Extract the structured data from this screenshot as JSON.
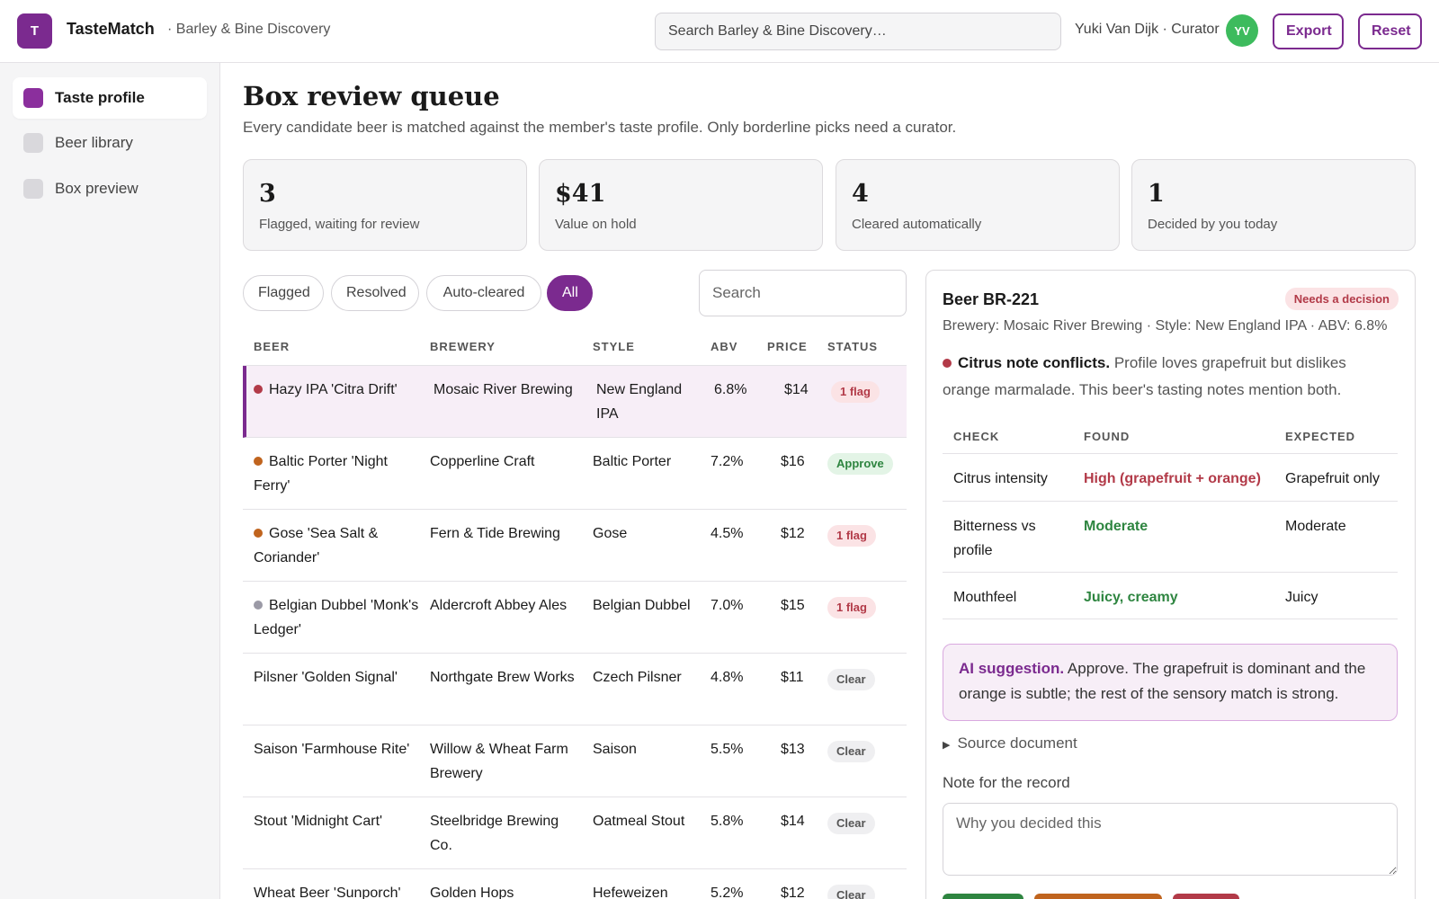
{
  "header": {
    "logo_letter": "T",
    "app_name": "TasteMatch",
    "workspace": "· Barley & Bine Discovery",
    "search_placeholder": "Search Barley & Bine Discovery…",
    "user": "Yuki Van Dijk · Curator",
    "avatar_initials": "YV",
    "export_label": "Export",
    "reset_label": "Reset"
  },
  "sidebar": {
    "items": [
      {
        "label": "Taste profile",
        "active": true
      },
      {
        "label": "Beer library",
        "active": false
      },
      {
        "label": "Box preview",
        "active": false
      }
    ]
  },
  "main": {
    "title": "Box review queue",
    "subtitle": "Every candidate beer is matched against the member's taste profile. Only borderline picks need a curator.",
    "stats": [
      {
        "value": "3",
        "label": "Flagged, waiting for review"
      },
      {
        "value": "$41",
        "label": "Value on hold"
      },
      {
        "value": "4",
        "label": "Cleared automatically"
      },
      {
        "value": "1",
        "label": "Decided by you today"
      }
    ],
    "filters": [
      {
        "label": "Flagged",
        "active": false
      },
      {
        "label": "Resolved",
        "active": false
      },
      {
        "label": "Auto-cleared",
        "active": false
      },
      {
        "label": "All",
        "active": true
      }
    ],
    "table_search_placeholder": "Search",
    "columns": [
      "BEER",
      "BREWERY",
      "STYLE",
      "ABV",
      "PRICE",
      "STATUS"
    ],
    "rows": [
      {
        "beer": "Hazy IPA 'Citra Drift'",
        "brewery": "Mosaic River Brewing",
        "style": "New England IPA",
        "abv": "6.8%",
        "price": "$14",
        "status": "1 flag",
        "status_kind": "flag",
        "dot": "#b23a48",
        "selected": true
      },
      {
        "beer": "Baltic Porter 'Night Ferry'",
        "brewery": "Copperline Craft",
        "style": "Baltic Porter",
        "abv": "7.2%",
        "price": "$16",
        "status": "Approve",
        "status_kind": "approve",
        "dot": "#c0641e",
        "selected": false
      },
      {
        "beer": "Gose 'Sea Salt & Coriander'",
        "brewery": "Fern & Tide Brewing",
        "style": "Gose",
        "abv": "4.5%",
        "price": "$12",
        "status": "1 flag",
        "status_kind": "flag",
        "dot": "#c0641e",
        "selected": false
      },
      {
        "beer": "Belgian Dubbel 'Monk's Ledger'",
        "brewery": "Aldercroft Abbey Ales",
        "style": "Belgian Dubbel",
        "abv": "7.0%",
        "price": "$15",
        "status": "1 flag",
        "status_kind": "flag",
        "dot": "#9b9aa6",
        "selected": false
      },
      {
        "beer": "Pilsner 'Golden Signal'",
        "brewery": "Northgate Brew Works",
        "style": "Czech Pilsner",
        "abv": "4.8%",
        "price": "$11",
        "status": "Clear",
        "status_kind": "clear",
        "dot": "",
        "selected": false
      },
      {
        "beer": "Saison 'Farmhouse Rite'",
        "brewery": "Willow & Wheat Farm Brewery",
        "style": "Saison",
        "abv": "5.5%",
        "price": "$13",
        "status": "Clear",
        "status_kind": "clear",
        "dot": "",
        "selected": false
      },
      {
        "beer": "Stout 'Midnight Cart'",
        "brewery": "Steelbridge Brewing Co.",
        "style": "Oatmeal Stout",
        "abv": "5.8%",
        "price": "$14",
        "status": "Clear",
        "status_kind": "clear",
        "dot": "",
        "selected": false
      },
      {
        "beer": "Wheat Beer 'Sunporch'",
        "brewery": "Golden Hops",
        "style": "Hefeweizen",
        "abv": "5.2%",
        "price": "$12",
        "status": "Clear",
        "status_kind": "clear",
        "dot": "",
        "selected": false
      }
    ]
  },
  "detail": {
    "title": "Beer BR-221",
    "badge": "Needs a decision",
    "meta": "Brewery: Mosaic River Brewing · Style: New England IPA · ABV: 6.8%",
    "conflict_title": "Citrus note conflicts.",
    "conflict_text": "Profile loves grapefruit but dislikes orange marmalade. This beer's tasting notes mention both.",
    "columns": [
      "CHECK",
      "FOUND",
      "EXPECTED"
    ],
    "checks": [
      {
        "check": "Citrus intensity",
        "found": "High (grapefruit + orange)",
        "expected": "Grapefruit only",
        "color": "#b23a48"
      },
      {
        "check": "Bitterness vs profile",
        "found": "Moderate",
        "expected": "Moderate",
        "color": "#2e8540"
      },
      {
        "check": "Mouthfeel",
        "found": "Juicy, creamy",
        "expected": "Juicy",
        "color": "#2e8540"
      }
    ],
    "ai_label": "AI suggestion.",
    "ai_text": "Approve. The grapefruit is dominant and the orange is subtle; the rest of the sensory match is strong.",
    "source_label": "Source document",
    "note_label": "Note for the record",
    "note_placeholder": "Why you decided this"
  },
  "colors": {
    "accent": "#7b2a8f",
    "flag_text": "#b23a48",
    "flag_bg": "#fbe3e5",
    "approve_text": "#2e8540",
    "approve_bg": "#e3f4e6",
    "clear_text": "#555555",
    "clear_bg": "#efeff1"
  }
}
